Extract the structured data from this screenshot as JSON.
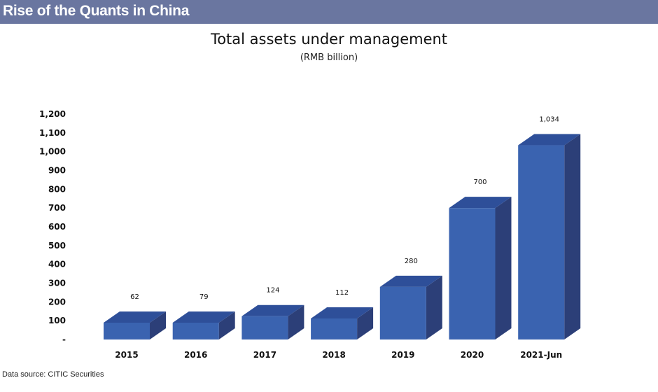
{
  "header": {
    "banner_title": "Rise of the Quants in China"
  },
  "chart_data": {
    "type": "bar",
    "title": "Total assets under management",
    "subtitle": "(RMB billion)",
    "categories": [
      "2015",
      "2016",
      "2017",
      "2018",
      "2019",
      "2020",
      "2021-Jun"
    ],
    "values": [
      62,
      79,
      124,
      112,
      280,
      700,
      1034
    ],
    "data_labels": [
      "62",
      "79",
      "124",
      "112",
      "280",
      "700",
      "1,034"
    ],
    "y_ticks": [
      "-",
      "100",
      "200",
      "300",
      "400",
      "500",
      "600",
      "700",
      "800",
      "900",
      "1,000",
      "1,100",
      "1,200"
    ],
    "ylim": [
      0,
      1200
    ],
    "grid": false,
    "legend": "none",
    "style": "3d-column",
    "colors": {
      "front": "#3a63b0",
      "top": "#2e4f99",
      "side": "#2c3f78"
    }
  },
  "footer": {
    "source": "Data source: CITIC Securities"
  }
}
